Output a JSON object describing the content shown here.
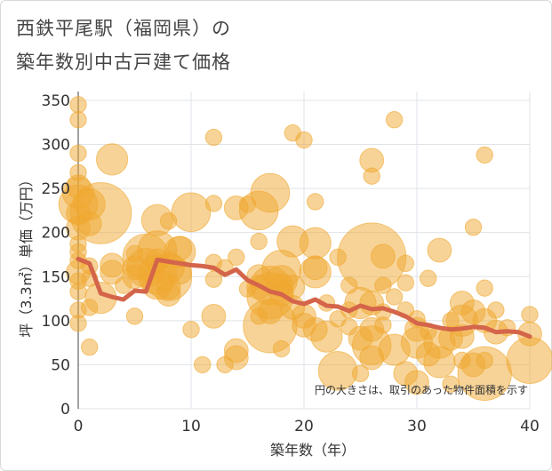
{
  "chart_data": {
    "type": "scatter",
    "title_line1": "西鉄平尾駅（福岡県）の",
    "title_line2": "築年数別中古戸建て価格",
    "xlabel": "築年数（年）",
    "ylabel": "坪（3.3㎡）単価（万円）",
    "xlim": [
      0,
      40
    ],
    "ylim": [
      0,
      360
    ],
    "x_ticks": [
      "0",
      "10",
      "20",
      "30",
      "40"
    ],
    "y_ticks": [
      "0",
      "50",
      "100",
      "150",
      "200",
      "250",
      "300",
      "350"
    ],
    "annotation": "円の大きさは、取引のあった物件面積を示す",
    "colors": {
      "bubble": "#f0a830",
      "line": "#d4654a",
      "grid": "#dfe3e8"
    },
    "points": [
      {
        "x": 0,
        "y": 345,
        "s": 1
      },
      {
        "x": 0,
        "y": 328,
        "s": 1
      },
      {
        "x": 0,
        "y": 290,
        "s": 1
      },
      {
        "x": 0,
        "y": 268,
        "s": 1
      },
      {
        "x": 0,
        "y": 252,
        "s": 2
      },
      {
        "x": 0,
        "y": 245,
        "s": 3
      },
      {
        "x": 0,
        "y": 232,
        "s": 4
      },
      {
        "x": 0,
        "y": 222,
        "s": 2
      },
      {
        "x": 0,
        "y": 205,
        "s": 2
      },
      {
        "x": 0,
        "y": 187,
        "s": 1
      },
      {
        "x": 0,
        "y": 178,
        "s": 1
      },
      {
        "x": 0,
        "y": 168,
        "s": 1
      },
      {
        "x": 0,
        "y": 155,
        "s": 2
      },
      {
        "x": 0,
        "y": 145,
        "s": 1
      },
      {
        "x": 0,
        "y": 133,
        "s": 1
      },
      {
        "x": 0,
        "y": 112,
        "s": 1
      },
      {
        "x": 0,
        "y": 97,
        "s": 1
      },
      {
        "x": 1,
        "y": 232,
        "s": 3
      },
      {
        "x": 1,
        "y": 210,
        "s": 2
      },
      {
        "x": 1,
        "y": 162,
        "s": 1
      },
      {
        "x": 1,
        "y": 148,
        "s": 1
      },
      {
        "x": 1,
        "y": 115,
        "s": 1
      },
      {
        "x": 1,
        "y": 70,
        "s": 1
      },
      {
        "x": 2,
        "y": 222,
        "s": 7
      },
      {
        "x": 2,
        "y": 126,
        "s": 3
      },
      {
        "x": 3,
        "y": 283,
        "s": 3
      },
      {
        "x": 3,
        "y": 163,
        "s": 2
      },
      {
        "x": 3,
        "y": 155,
        "s": 2
      },
      {
        "x": 4,
        "y": 140,
        "s": 1
      },
      {
        "x": 5,
        "y": 176,
        "s": 1
      },
      {
        "x": 5,
        "y": 160,
        "s": 2
      },
      {
        "x": 5,
        "y": 150,
        "s": 2
      },
      {
        "x": 5,
        "y": 105,
        "s": 1
      },
      {
        "x": 6,
        "y": 172,
        "s": 5
      },
      {
        "x": 6,
        "y": 160,
        "s": 4
      },
      {
        "x": 7,
        "y": 214,
        "s": 3
      },
      {
        "x": 7,
        "y": 180,
        "s": 4
      },
      {
        "x": 7,
        "y": 168,
        "s": 2
      },
      {
        "x": 7,
        "y": 152,
        "s": 4
      },
      {
        "x": 7,
        "y": 142,
        "s": 3
      },
      {
        "x": 8,
        "y": 213,
        "s": 1
      },
      {
        "x": 8,
        "y": 160,
        "s": 3
      },
      {
        "x": 8,
        "y": 149,
        "s": 5
      },
      {
        "x": 8,
        "y": 138,
        "s": 2
      },
      {
        "x": 8,
        "y": 130,
        "s": 2
      },
      {
        "x": 9,
        "y": 182,
        "s": 2
      },
      {
        "x": 9,
        "y": 178,
        "s": 3
      },
      {
        "x": 9,
        "y": 155,
        "s": 2
      },
      {
        "x": 10,
        "y": 223,
        "s": 4
      },
      {
        "x": 10,
        "y": 90,
        "s": 1
      },
      {
        "x": 11,
        "y": 50,
        "s": 1
      },
      {
        "x": 12,
        "y": 308,
        "s": 1
      },
      {
        "x": 12,
        "y": 233,
        "s": 1
      },
      {
        "x": 12,
        "y": 166,
        "s": 1
      },
      {
        "x": 12,
        "y": 147,
        "s": 1
      },
      {
        "x": 12,
        "y": 105,
        "s": 2
      },
      {
        "x": 13,
        "y": 160,
        "s": 1
      },
      {
        "x": 13,
        "y": 50,
        "s": 1
      },
      {
        "x": 14,
        "y": 228,
        "s": 2
      },
      {
        "x": 14,
        "y": 172,
        "s": 1
      },
      {
        "x": 14,
        "y": 66,
        "s": 2
      },
      {
        "x": 14,
        "y": 58,
        "s": 2
      },
      {
        "x": 15,
        "y": 232,
        "s": 1
      },
      {
        "x": 15,
        "y": 136,
        "s": 1
      },
      {
        "x": 16,
        "y": 225,
        "s": 4
      },
      {
        "x": 16,
        "y": 190,
        "s": 1
      },
      {
        "x": 16,
        "y": 150,
        "s": 2
      },
      {
        "x": 16,
        "y": 138,
        "s": 2
      },
      {
        "x": 16,
        "y": 105,
        "s": 1
      },
      {
        "x": 17,
        "y": 245,
        "s": 4
      },
      {
        "x": 17,
        "y": 140,
        "s": 4
      },
      {
        "x": 17,
        "y": 128,
        "s": 5
      },
      {
        "x": 17,
        "y": 110,
        "s": 2
      },
      {
        "x": 17,
        "y": 94,
        "s": 6
      },
      {
        "x": 18,
        "y": 158,
        "s": 4
      },
      {
        "x": 18,
        "y": 145,
        "s": 3
      },
      {
        "x": 18,
        "y": 140,
        "s": 2
      },
      {
        "x": 18,
        "y": 130,
        "s": 2
      },
      {
        "x": 18,
        "y": 68,
        "s": 1
      },
      {
        "x": 19,
        "y": 313,
        "s": 1
      },
      {
        "x": 19,
        "y": 190,
        "s": 3
      },
      {
        "x": 19,
        "y": 138,
        "s": 2
      },
      {
        "x": 19,
        "y": 115,
        "s": 2
      },
      {
        "x": 20,
        "y": 305,
        "s": 1
      },
      {
        "x": 20,
        "y": 105,
        "s": 2
      },
      {
        "x": 20,
        "y": 95,
        "s": 2
      },
      {
        "x": 21,
        "y": 235,
        "s": 1
      },
      {
        "x": 21,
        "y": 188,
        "s": 3
      },
      {
        "x": 21,
        "y": 160,
        "s": 2
      },
      {
        "x": 21,
        "y": 155,
        "s": 3
      },
      {
        "x": 21,
        "y": 90,
        "s": 2
      },
      {
        "x": 22,
        "y": 120,
        "s": 1
      },
      {
        "x": 22,
        "y": 82,
        "s": 3
      },
      {
        "x": 23,
        "y": 172,
        "s": 1
      },
      {
        "x": 23,
        "y": 102,
        "s": 1
      },
      {
        "x": 23,
        "y": 43,
        "s": 4
      },
      {
        "x": 24,
        "y": 140,
        "s": 1
      },
      {
        "x": 24,
        "y": 112,
        "s": 1
      },
      {
        "x": 24,
        "y": 93,
        "s": 1
      },
      {
        "x": 25,
        "y": 120,
        "s": 3
      },
      {
        "x": 25,
        "y": 80,
        "s": 2
      },
      {
        "x": 25,
        "y": 40,
        "s": 1
      },
      {
        "x": 26,
        "y": 282,
        "s": 2
      },
      {
        "x": 26,
        "y": 264,
        "s": 1
      },
      {
        "x": 26,
        "y": 172,
        "s": 8
      },
      {
        "x": 26,
        "y": 120,
        "s": 2
      },
      {
        "x": 26,
        "y": 90,
        "s": 2
      },
      {
        "x": 26,
        "y": 72,
        "s": 4
      },
      {
        "x": 26,
        "y": 58,
        "s": 2
      },
      {
        "x": 27,
        "y": 173,
        "s": 2
      },
      {
        "x": 27,
        "y": 140,
        "s": 1
      },
      {
        "x": 27,
        "y": 110,
        "s": 1
      },
      {
        "x": 27,
        "y": 95,
        "s": 1
      },
      {
        "x": 28,
        "y": 328,
        "s": 1
      },
      {
        "x": 28,
        "y": 127,
        "s": 1
      },
      {
        "x": 28,
        "y": 67,
        "s": 3
      },
      {
        "x": 29,
        "y": 165,
        "s": 1
      },
      {
        "x": 29,
        "y": 143,
        "s": 1
      },
      {
        "x": 29,
        "y": 112,
        "s": 1
      },
      {
        "x": 29,
        "y": 40,
        "s": 2
      },
      {
        "x": 30,
        "y": 102,
        "s": 1
      },
      {
        "x": 30,
        "y": 90,
        "s": 2
      },
      {
        "x": 30,
        "y": 75,
        "s": 3
      },
      {
        "x": 30,
        "y": 30,
        "s": 2
      },
      {
        "x": 31,
        "y": 148,
        "s": 1
      },
      {
        "x": 31,
        "y": 88,
        "s": 1
      },
      {
        "x": 31,
        "y": 62,
        "s": 2
      },
      {
        "x": 32,
        "y": 180,
        "s": 2
      },
      {
        "x": 32,
        "y": 75,
        "s": 3
      },
      {
        "x": 32,
        "y": 53,
        "s": 3
      },
      {
        "x": 33,
        "y": 100,
        "s": 1
      },
      {
        "x": 33,
        "y": 80,
        "s": 2
      },
      {
        "x": 33,
        "y": 28,
        "s": 1
      },
      {
        "x": 34,
        "y": 120,
        "s": 2
      },
      {
        "x": 34,
        "y": 100,
        "s": 3
      },
      {
        "x": 34,
        "y": 82,
        "s": 2
      },
      {
        "x": 34,
        "y": 55,
        "s": 1
      },
      {
        "x": 35,
        "y": 206,
        "s": 1
      },
      {
        "x": 35,
        "y": 110,
        "s": 2
      },
      {
        "x": 35,
        "y": 50,
        "s": 2
      },
      {
        "x": 36,
        "y": 288,
        "s": 1
      },
      {
        "x": 36,
        "y": 137,
        "s": 1
      },
      {
        "x": 36,
        "y": 100,
        "s": 2
      },
      {
        "x": 36,
        "y": 40,
        "s": 6
      },
      {
        "x": 36,
        "y": 55,
        "s": 1
      },
      {
        "x": 37,
        "y": 87,
        "s": 2
      },
      {
        "x": 37,
        "y": 112,
        "s": 1
      },
      {
        "x": 38,
        "y": 92,
        "s": 1
      },
      {
        "x": 40,
        "y": 107,
        "s": 1
      },
      {
        "x": 40,
        "y": 85,
        "s": 2
      },
      {
        "x": 40,
        "y": 55,
        "s": 5
      }
    ],
    "trend": {
      "x": [
        0,
        1,
        2,
        3,
        4,
        5,
        6,
        7,
        8,
        9,
        10,
        11,
        12,
        13,
        14,
        15,
        16,
        17,
        18,
        19,
        20,
        21,
        22,
        23,
        24,
        25,
        26,
        27,
        28,
        29,
        30,
        31,
        32,
        33,
        34,
        35,
        36,
        37,
        38,
        39,
        40
      ],
      "y": [
        170,
        165,
        131,
        127,
        124,
        134,
        133,
        169,
        167,
        165,
        163,
        162,
        160,
        152,
        158,
        146,
        140,
        133,
        130,
        122,
        119,
        124,
        117,
        116,
        111,
        117,
        113,
        114,
        110,
        105,
        97,
        95,
        92,
        90,
        91,
        93,
        92,
        87,
        88,
        87,
        82
      ]
    }
  }
}
